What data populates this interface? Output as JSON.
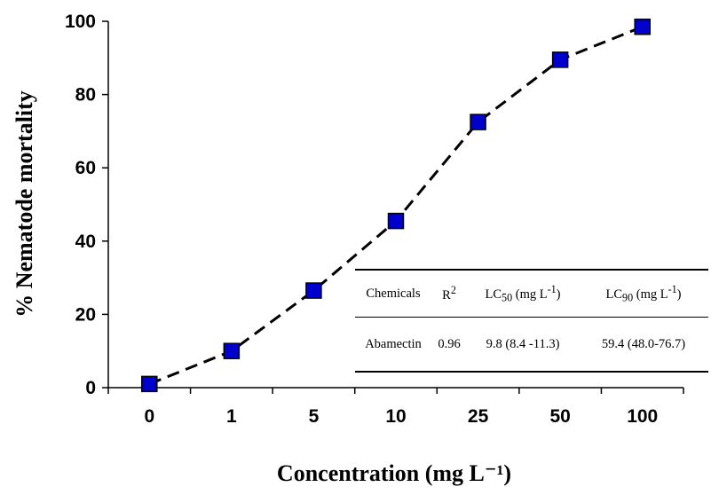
{
  "chart_data": {
    "type": "line",
    "title": "",
    "xlabel": "Concentration (mg L⁻¹)",
    "ylabel": "% Nematode mortality",
    "categories": [
      "0",
      "1",
      "5",
      "10",
      "25",
      "50",
      "100"
    ],
    "series": [
      {
        "values": [
          1,
          10,
          26.5,
          45.5,
          72.5,
          89.5,
          98.5
        ]
      }
    ],
    "ylim": [
      0,
      100
    ],
    "yticks": [
      "0",
      "20",
      "40",
      "60",
      "80",
      "100"
    ],
    "grid": false,
    "line_style": "dashed",
    "marker": "square",
    "marker_color": "#0000cc",
    "line_color": "#000000"
  },
  "table": {
    "headers": {
      "chemicals": "Chemicals",
      "r2_base": "R",
      "r2_sup": "2",
      "lc50_base": "LC",
      "lc50_sub": "50",
      "lc50_unit": " (mg L",
      "lc50_sup": "-1",
      "lc50_close": ")",
      "lc90_base": "LC",
      "lc90_sub": "90",
      "lc90_unit": " (mg L",
      "lc90_sup": "-1",
      "lc90_close": ")"
    },
    "row": {
      "chemical": "Abamectin",
      "r2": "0.96",
      "lc50": "9.8 (8.4 -11.3)",
      "lc90": "59.4 (48.0-76.7)"
    }
  }
}
